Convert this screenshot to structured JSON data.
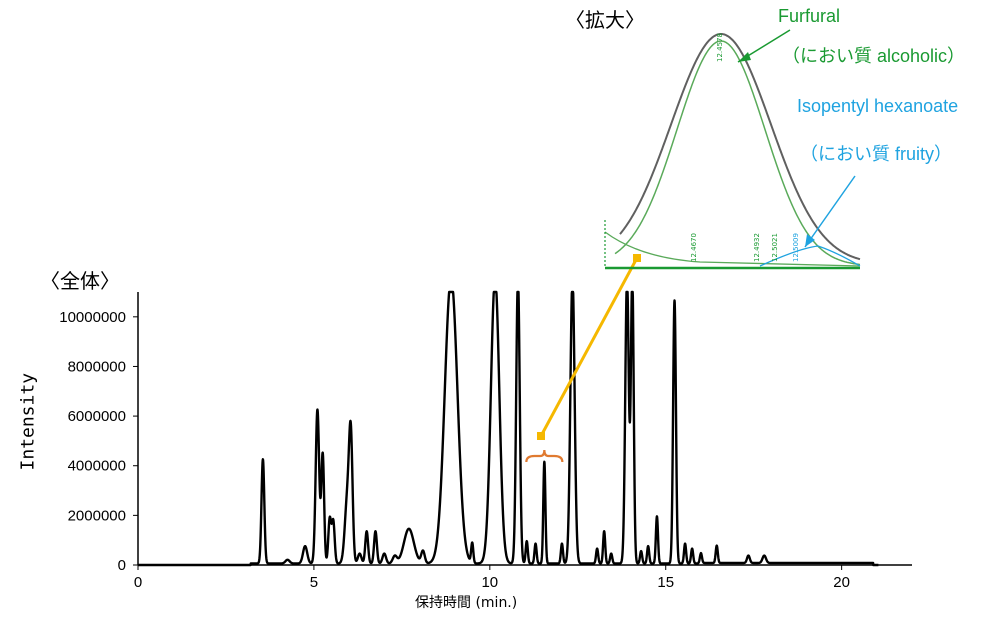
{
  "labels": {
    "overall": "〈全体〉",
    "zoom": "〈拡大〉",
    "furfural_name": "Furfural",
    "furfural_odor": "（におい質 alcoholic）",
    "iso_name": "Isopentyl hexanoate",
    "iso_odor": "（におい質 fruity）"
  },
  "colors": {
    "main_trace": "#000000",
    "furfural": "#1a9a32",
    "isopentyl": "#1fa3e0",
    "arrow": "#f5b800",
    "bracket": "#e07a30",
    "total_ion": "#606060"
  },
  "chart_data": [
    {
      "type": "line",
      "title": "",
      "xlabel": "保持時間 (min.)",
      "ylabel": "Intensity",
      "xlim": [
        0,
        22
      ],
      "ylim": [
        0,
        11000000
      ],
      "xticks": [
        0,
        5,
        10,
        15,
        20
      ],
      "yticks": [
        0,
        2000000,
        4000000,
        6000000,
        8000000,
        10000000
      ],
      "ytick_labels": [
        "0",
        "2000000",
        "4000000",
        "6000000",
        "8000000",
        "10000000"
      ],
      "grid": false,
      "peaks": [
        {
          "rt": 3.55,
          "height": 4200000,
          "w": 0.04
        },
        {
          "rt": 4.25,
          "height": 150000,
          "w": 0.06
        },
        {
          "rt": 4.75,
          "height": 700000,
          "w": 0.06
        },
        {
          "rt": 5.1,
          "height": 6200000,
          "w": 0.05
        },
        {
          "rt": 5.25,
          "height": 4400000,
          "w": 0.04
        },
        {
          "rt": 5.45,
          "height": 1800000,
          "w": 0.04
        },
        {
          "rt": 5.55,
          "height": 1700000,
          "w": 0.04
        },
        {
          "rt": 5.95,
          "height": 2600000,
          "w": 0.07
        },
        {
          "rt": 6.05,
          "height": 4700000,
          "w": 0.05
        },
        {
          "rt": 6.3,
          "height": 400000,
          "w": 0.05
        },
        {
          "rt": 6.5,
          "height": 1300000,
          "w": 0.04
        },
        {
          "rt": 6.75,
          "height": 1300000,
          "w": 0.04
        },
        {
          "rt": 7.0,
          "height": 400000,
          "w": 0.05
        },
        {
          "rt": 7.3,
          "height": 300000,
          "w": 0.06
        },
        {
          "rt": 7.7,
          "height": 1400000,
          "w": 0.14
        },
        {
          "rt": 8.1,
          "height": 500000,
          "w": 0.05
        },
        {
          "rt": 8.9,
          "height": 11500000,
          "w": 0.18
        },
        {
          "rt": 9.5,
          "height": 800000,
          "w": 0.03
        },
        {
          "rt": 10.15,
          "height": 11500000,
          "w": 0.12
        },
        {
          "rt": 10.8,
          "height": 11500000,
          "w": 0.05
        },
        {
          "rt": 11.05,
          "height": 900000,
          "w": 0.03
        },
        {
          "rt": 11.3,
          "height": 800000,
          "w": 0.03
        },
        {
          "rt": 11.55,
          "height": 4100000,
          "w": 0.03
        },
        {
          "rt": 12.05,
          "height": 800000,
          "w": 0.03
        },
        {
          "rt": 12.35,
          "height": 11500000,
          "w": 0.06
        },
        {
          "rt": 13.05,
          "height": 600000,
          "w": 0.03
        },
        {
          "rt": 13.25,
          "height": 1300000,
          "w": 0.03
        },
        {
          "rt": 13.45,
          "height": 400000,
          "w": 0.03
        },
        {
          "rt": 13.9,
          "height": 11500000,
          "w": 0.05
        },
        {
          "rt": 14.05,
          "height": 11500000,
          "w": 0.04
        },
        {
          "rt": 14.3,
          "height": 500000,
          "w": 0.03
        },
        {
          "rt": 14.5,
          "height": 700000,
          "w": 0.03
        },
        {
          "rt": 14.75,
          "height": 1900000,
          "w": 0.03
        },
        {
          "rt": 15.25,
          "height": 10600000,
          "w": 0.04
        },
        {
          "rt": 15.55,
          "height": 800000,
          "w": 0.03
        },
        {
          "rt": 15.75,
          "height": 600000,
          "w": 0.03
        },
        {
          "rt": 16.0,
          "height": 400000,
          "w": 0.03
        },
        {
          "rt": 16.45,
          "height": 700000,
          "w": 0.03
        },
        {
          "rt": 17.35,
          "height": 300000,
          "w": 0.04
        },
        {
          "rt": 17.8,
          "height": 300000,
          "w": 0.05
        }
      ]
    },
    {
      "type": "line",
      "title": "",
      "series": [
        {
          "name": "Furfural",
          "annotations": [
            "12.4578"
          ]
        },
        {
          "name": "Isopentyl hexanoate",
          "annotations": [
            "12.5009"
          ]
        }
      ],
      "peak_annotations": [
        "12.4670",
        "12.4932",
        "12.5021"
      ]
    }
  ]
}
